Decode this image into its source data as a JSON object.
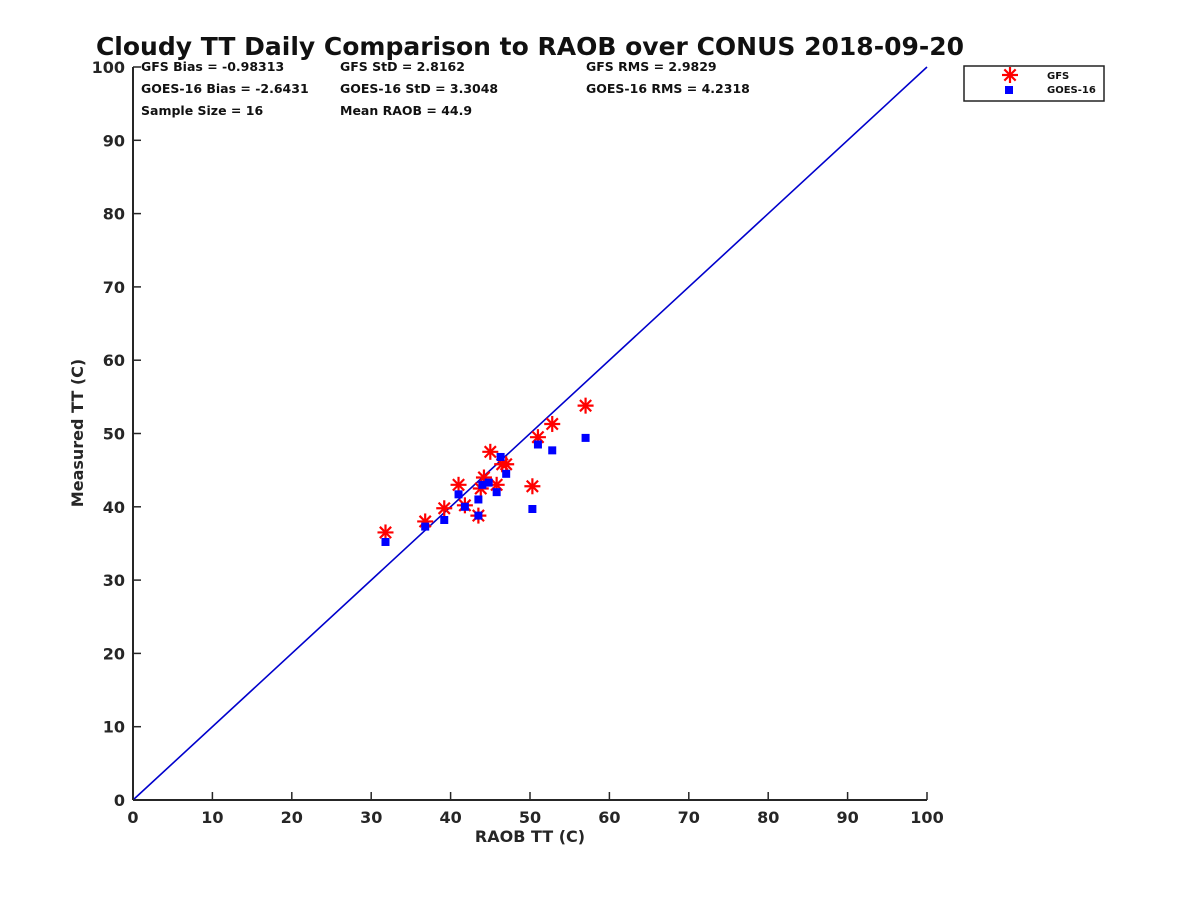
{
  "chart_data": {
    "type": "scatter",
    "title": "Cloudy TT Daily Comparison to RAOB over CONUS 2018-09-20",
    "xlabel": "RAOB TT (C)",
    "ylabel": "Measured TT (C)",
    "xlim": [
      0,
      100
    ],
    "ylim": [
      0,
      100
    ],
    "xticks": [
      "0",
      "10",
      "20",
      "30",
      "40",
      "50",
      "60",
      "70",
      "80",
      "90",
      "100"
    ],
    "yticks": [
      "0",
      "10",
      "20",
      "30",
      "40",
      "50",
      "60",
      "70",
      "80",
      "90",
      "100"
    ],
    "grid": false,
    "legend_position": "top-right-outside",
    "reference_line": {
      "x": [
        0,
        100
      ],
      "y": [
        0,
        100
      ],
      "color": "#0000cc"
    },
    "stats": {
      "gfs_bias": "GFS Bias = -0.98313",
      "gfs_std": "GFS StD = 2.8162",
      "gfs_rms": "GFS RMS = 2.9829",
      "goes_bias": "GOES-16 Bias = -2.6431",
      "goes_std": "GOES-16 StD = 3.3048",
      "goes_rms": "GOES-16 RMS = 4.2318",
      "sample_size": "Sample Size = 16",
      "mean_raob": "Mean RAOB = 44.9"
    },
    "series": [
      {
        "name": "GFS",
        "marker": "asterisk",
        "color": "#ff0000",
        "points": [
          [
            31.8,
            36.5
          ],
          [
            36.8,
            38.0
          ],
          [
            39.2,
            39.8
          ],
          [
            41.0,
            43.0
          ],
          [
            41.8,
            40.2
          ],
          [
            43.5,
            38.8
          ],
          [
            43.8,
            42.5
          ],
          [
            44.2,
            44.0
          ],
          [
            45.0,
            47.5
          ],
          [
            45.8,
            43.0
          ],
          [
            46.5,
            45.8
          ],
          [
            47.0,
            45.8
          ],
          [
            50.3,
            42.8
          ],
          [
            51.0,
            49.5
          ],
          [
            52.8,
            51.3
          ],
          [
            57.0,
            53.8
          ]
        ]
      },
      {
        "name": "GOES-16",
        "marker": "square",
        "color": "#0000ff",
        "points": [
          [
            31.8,
            35.2
          ],
          [
            36.8,
            37.3
          ],
          [
            39.2,
            38.2
          ],
          [
            41.0,
            41.7
          ],
          [
            41.8,
            40.0
          ],
          [
            43.5,
            38.8
          ],
          [
            43.5,
            41.0
          ],
          [
            44.0,
            43.0
          ],
          [
            44.8,
            43.3
          ],
          [
            45.8,
            42.0
          ],
          [
            46.3,
            46.8
          ],
          [
            47.0,
            44.5
          ],
          [
            50.3,
            39.7
          ],
          [
            51.0,
            48.5
          ],
          [
            52.8,
            47.7
          ],
          [
            57.0,
            49.4
          ]
        ]
      }
    ]
  }
}
